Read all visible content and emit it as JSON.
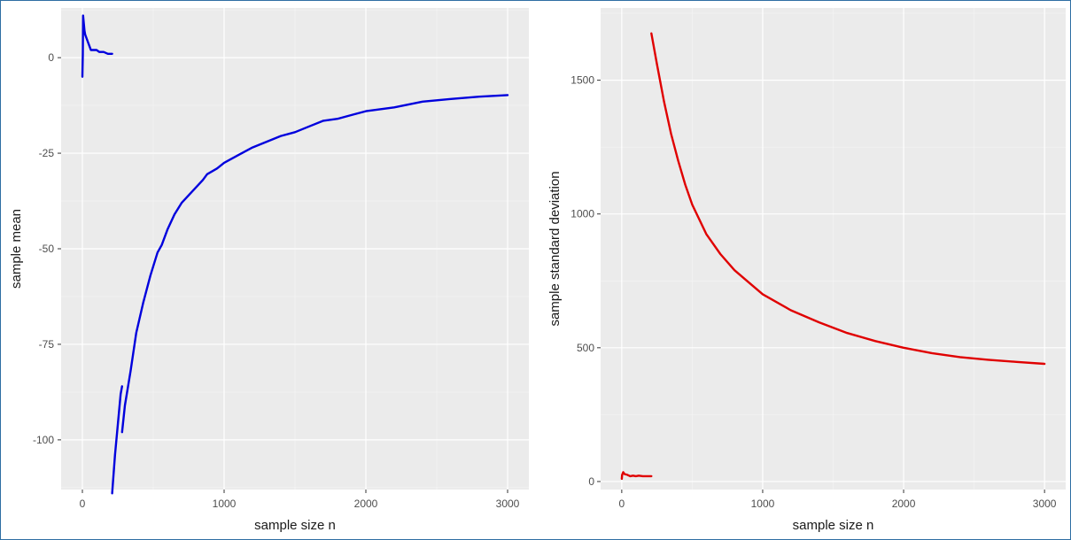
{
  "chart_data": [
    {
      "type": "line",
      "xlabel": "sample size n",
      "ylabel": "sample mean",
      "xlim": [
        -150,
        3150
      ],
      "ylim": [
        -113,
        13
      ],
      "x_ticks": [
        0,
        1000,
        2000,
        3000
      ],
      "x_tick_labels": [
        "0",
        "1000",
        "2000",
        "3000"
      ],
      "y_ticks": [
        0,
        -25,
        -50,
        -75,
        -100
      ],
      "y_tick_labels": [
        "0",
        "-25",
        "-50",
        "-75",
        "-100"
      ],
      "grid": true,
      "color": "#0000dd",
      "series": [
        {
          "segments": [
            [
              [
                0,
                -5
              ],
              [
                3,
                1
              ],
              [
                5,
                11
              ],
              [
                10,
                9
              ],
              [
                15,
                7
              ],
              [
                20,
                6
              ],
              [
                30,
                5
              ],
              [
                40,
                4
              ],
              [
                50,
                3
              ],
              [
                60,
                2
              ],
              [
                80,
                2
              ],
              [
                100,
                2
              ],
              [
                120,
                1.5
              ],
              [
                150,
                1.5
              ],
              [
                180,
                1
              ],
              [
                210,
                1
              ]
            ],
            [
              [
                210,
                -114
              ],
              [
                230,
                -104
              ],
              [
                250,
                -96
              ],
              [
                270,
                -88
              ],
              [
                280,
                -86
              ]
            ],
            [
              [
                280,
                -98
              ],
              [
                300,
                -91
              ],
              [
                340,
                -82
              ],
              [
                380,
                -72
              ],
              [
                430,
                -64
              ],
              [
                480,
                -57
              ],
              [
                530,
                -51
              ],
              [
                560,
                -49
              ],
              [
                600,
                -45
              ],
              [
                650,
                -41
              ],
              [
                700,
                -38
              ],
              [
                750,
                -36
              ],
              [
                800,
                -34
              ],
              [
                850,
                -32
              ],
              [
                880,
                -30.5
              ],
              [
                950,
                -29
              ],
              [
                1000,
                -27.5
              ],
              [
                1100,
                -25.5
              ],
              [
                1200,
                -23.5
              ],
              [
                1300,
                -22
              ],
              [
                1400,
                -20.5
              ],
              [
                1500,
                -19.5
              ],
              [
                1600,
                -18
              ],
              [
                1700,
                -16.5
              ],
              [
                1800,
                -16
              ],
              [
                1900,
                -15
              ],
              [
                2000,
                -14
              ],
              [
                2200,
                -13
              ],
              [
                2400,
                -11.5
              ],
              [
                2600,
                -10.8
              ],
              [
                2800,
                -10.2
              ],
              [
                3000,
                -9.8
              ]
            ]
          ]
        }
      ]
    },
    {
      "type": "line",
      "xlabel": "sample size n",
      "ylabel": "sample standard deviation",
      "xlim": [
        -150,
        3150
      ],
      "ylim": [
        -30,
        1770
      ],
      "x_ticks": [
        0,
        1000,
        2000,
        3000
      ],
      "x_tick_labels": [
        "0",
        "1000",
        "2000",
        "3000"
      ],
      "y_ticks": [
        0,
        500,
        1000,
        1500
      ],
      "y_tick_labels": [
        "0",
        "500",
        "1000",
        "1500"
      ],
      "grid": true,
      "color": "#e00000",
      "series": [
        {
          "segments": [
            [
              [
                0,
                10
              ],
              [
                3,
                25
              ],
              [
                10,
                35
              ],
              [
                20,
                28
              ],
              [
                40,
                25
              ],
              [
                60,
                20
              ],
              [
                80,
                22
              ],
              [
                100,
                20
              ],
              [
                120,
                22
              ],
              [
                150,
                20
              ],
              [
                180,
                20
              ],
              [
                210,
                20
              ]
            ],
            [
              [
                210,
                1675
              ],
              [
                250,
                1560
              ],
              [
                300,
                1420
              ],
              [
                350,
                1300
              ],
              [
                400,
                1200
              ],
              [
                450,
                1110
              ],
              [
                500,
                1035
              ],
              [
                600,
                925
              ],
              [
                700,
                850
              ],
              [
                800,
                790
              ],
              [
                900,
                745
              ],
              [
                1000,
                700
              ],
              [
                1200,
                640
              ],
              [
                1400,
                595
              ],
              [
                1600,
                555
              ],
              [
                1800,
                525
              ],
              [
                2000,
                500
              ],
              [
                2200,
                480
              ],
              [
                2400,
                465
              ],
              [
                2600,
                455
              ],
              [
                2800,
                447
              ],
              [
                3000,
                440
              ]
            ]
          ]
        }
      ]
    }
  ]
}
